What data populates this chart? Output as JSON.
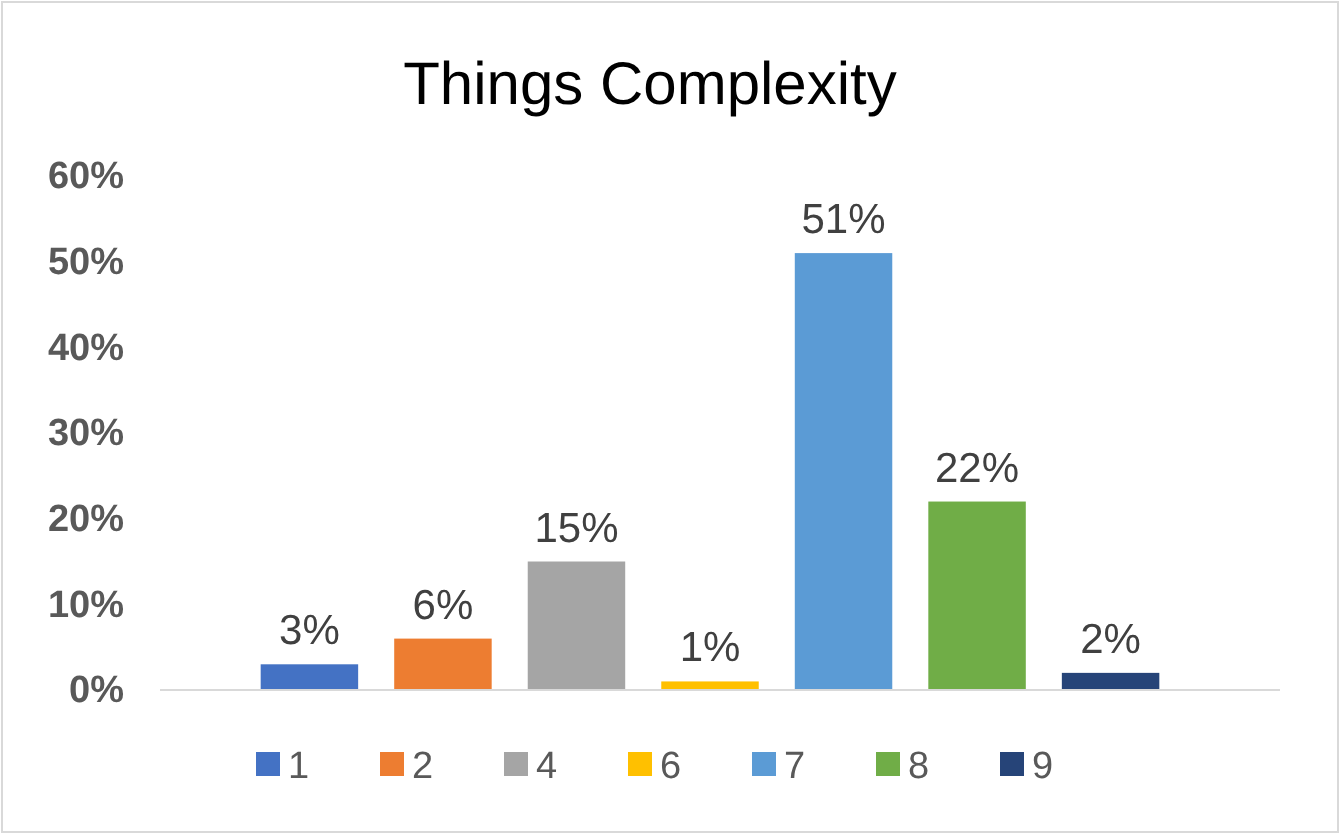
{
  "chart_data": {
    "type": "bar",
    "title": "Things Complexity",
    "categories": [
      null
    ],
    "series": [
      {
        "name": "1",
        "color": "#4472c4",
        "values": [
          3
        ],
        "value_labels": [
          "3%"
        ]
      },
      {
        "name": "2",
        "color": "#ed7d31",
        "values": [
          6
        ],
        "value_labels": [
          "6%"
        ]
      },
      {
        "name": "4",
        "color": "#a5a5a5",
        "values": [
          15
        ],
        "value_labels": [
          "15%"
        ]
      },
      {
        "name": "6",
        "color": "#ffc000",
        "values": [
          1
        ],
        "value_labels": [
          "1%"
        ]
      },
      {
        "name": "7",
        "color": "#5b9bd5",
        "values": [
          51
        ],
        "value_labels": [
          "51%"
        ]
      },
      {
        "name": "8",
        "color": "#70ad47",
        "values": [
          22
        ],
        "value_labels": [
          "22%"
        ]
      },
      {
        "name": "9",
        "color": "#264478",
        "values": [
          2
        ],
        "value_labels": [
          "2%"
        ]
      }
    ],
    "ylim": [
      0,
      60
    ],
    "yticks": [
      {
        "value": 0,
        "label": "0%"
      },
      {
        "value": 10,
        "label": "10%"
      },
      {
        "value": 20,
        "label": "20%"
      },
      {
        "value": 30,
        "label": "30%"
      },
      {
        "value": 40,
        "label": "40%"
      },
      {
        "value": 50,
        "label": "50%"
      },
      {
        "value": 60,
        "label": "60%"
      }
    ],
    "grid": false,
    "legend": "bottom"
  }
}
